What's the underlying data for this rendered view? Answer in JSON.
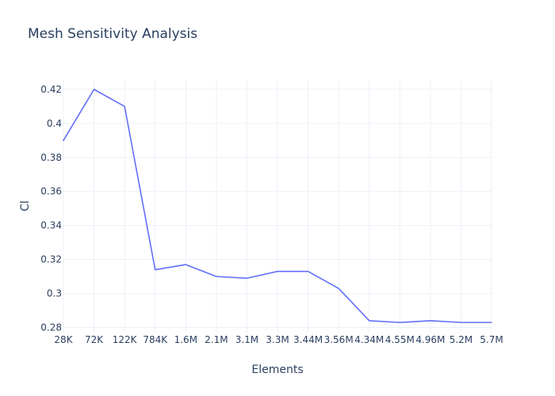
{
  "chart_data": {
    "type": "line",
    "title": "Mesh Sensitivity Analysis",
    "xlabel": "Elements",
    "ylabel": "Cl",
    "categories": [
      "28K",
      "72K",
      "122K",
      "784K",
      "1.6M",
      "2.1M",
      "3.1M",
      "3.3M",
      "3.44M",
      "3.56M",
      "4.34M",
      "4.55M",
      "4.96M",
      "5.2M",
      "5.7M"
    ],
    "series": [
      {
        "values": [
          0.39,
          0.42,
          0.41,
          0.314,
          0.317,
          0.31,
          0.309,
          0.313,
          0.313,
          0.303,
          0.284,
          0.283,
          0.284,
          0.283,
          0.283
        ]
      }
    ],
    "ylim": [
      0.277,
      0.426
    ],
    "yticks": [
      0.28,
      0.3,
      0.32,
      0.34,
      0.36,
      0.38,
      0.4,
      0.42
    ],
    "ytick_labels": [
      "0.28",
      "0.3",
      "0.32",
      "0.34",
      "0.36",
      "0.38",
      "0.4",
      "0.42"
    ],
    "grid": true,
    "line_color": "#636efa",
    "grid_color": "#ebf0f8",
    "text_color": "#2a3f5f"
  }
}
